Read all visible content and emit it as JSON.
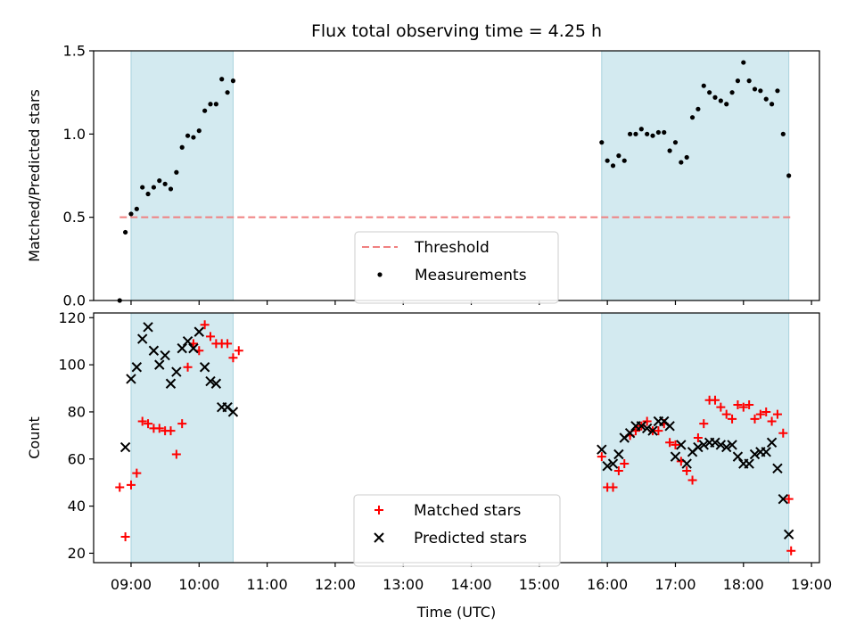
{
  "chart_data": {
    "title": "Flux total observing time = 4.25 h",
    "xlabel": "Time (UTC)",
    "xlim": [
      "08:27",
      "19:07"
    ],
    "xtick_labels": [
      "09:00",
      "10:00",
      "11:00",
      "12:00",
      "13:00",
      "14:00",
      "15:00",
      "16:00",
      "17:00",
      "18:00",
      "19:00"
    ],
    "shaded_intervals": [
      [
        "09:00",
        "10:30"
      ],
      [
        "15:55",
        "18:40"
      ]
    ],
    "shade_color": "#d3eaf0",
    "panels": [
      {
        "type": "scatter",
        "ylabel": "Matched/Predicted stars",
        "ylim": [
          0,
          1.5
        ],
        "yticks": [
          "0.0",
          "0.5",
          "1.0",
          "1.5"
        ],
        "threshold": {
          "name": "Threshold",
          "value": 0.5,
          "color": "#f08080"
        },
        "legend": {
          "position": "lower-center"
        },
        "series": [
          {
            "name": "Measurements",
            "marker": "dot",
            "color": "#000000",
            "points": [
              [
                "08:50",
                0.0
              ],
              [
                "08:55",
                0.41
              ],
              [
                "09:00",
                0.52
              ],
              [
                "09:05",
                0.55
              ],
              [
                "09:10",
                0.68
              ],
              [
                "09:15",
                0.64
              ],
              [
                "09:20",
                0.68
              ],
              [
                "09:25",
                0.72
              ],
              [
                "09:30",
                0.7
              ],
              [
                "09:35",
                0.67
              ],
              [
                "09:40",
                0.77
              ],
              [
                "09:45",
                0.92
              ],
              [
                "09:50",
                0.99
              ],
              [
                "09:55",
                0.98
              ],
              [
                "10:00",
                1.02
              ],
              [
                "10:05",
                1.14
              ],
              [
                "10:10",
                1.18
              ],
              [
                "10:15",
                1.18
              ],
              [
                "10:20",
                1.33
              ],
              [
                "10:25",
                1.25
              ],
              [
                "10:30",
                1.32
              ],
              [
                "15:55",
                0.95
              ],
              [
                "16:00",
                0.84
              ],
              [
                "16:05",
                0.81
              ],
              [
                "16:10",
                0.87
              ],
              [
                "16:15",
                0.84
              ],
              [
                "16:20",
                1.0
              ],
              [
                "16:25",
                1.0
              ],
              [
                "16:30",
                1.03
              ],
              [
                "16:35",
                1.0
              ],
              [
                "16:40",
                0.99
              ],
              [
                "16:45",
                1.01
              ],
              [
                "16:50",
                1.01
              ],
              [
                "16:55",
                0.9
              ],
              [
                "17:00",
                0.95
              ],
              [
                "17:05",
                0.83
              ],
              [
                "17:10",
                0.86
              ],
              [
                "17:15",
                1.1
              ],
              [
                "17:20",
                1.15
              ],
              [
                "17:25",
                1.29
              ],
              [
                "17:30",
                1.25
              ],
              [
                "17:35",
                1.22
              ],
              [
                "17:40",
                1.2
              ],
              [
                "17:45",
                1.18
              ],
              [
                "17:50",
                1.25
              ],
              [
                "17:55",
                1.32
              ],
              [
                "18:00",
                1.43
              ],
              [
                "18:05",
                1.32
              ],
              [
                "18:10",
                1.27
              ],
              [
                "18:15",
                1.26
              ],
              [
                "18:20",
                1.21
              ],
              [
                "18:25",
                1.18
              ],
              [
                "18:30",
                1.26
              ],
              [
                "18:35",
                1.0
              ],
              [
                "18:40",
                0.75
              ]
            ]
          }
        ]
      },
      {
        "type": "scatter",
        "ylabel": "Count",
        "ylim": [
          16,
          122
        ],
        "yticks": [
          "20",
          "40",
          "60",
          "80",
          "100",
          "120"
        ],
        "legend": {
          "position": "lower-center"
        },
        "series": [
          {
            "name": "Matched stars",
            "marker": "plus",
            "color": "#ff0000",
            "points": [
              [
                "08:50",
                48
              ],
              [
                "08:55",
                27
              ],
              [
                "09:00",
                49
              ],
              [
                "09:05",
                54
              ],
              [
                "09:10",
                76
              ],
              [
                "09:15",
                75
              ],
              [
                "09:20",
                73
              ],
              [
                "09:25",
                73
              ],
              [
                "09:30",
                72
              ],
              [
                "09:35",
                72
              ],
              [
                "09:40",
                62
              ],
              [
                "09:45",
                75
              ],
              [
                "09:50",
                99
              ],
              [
                "09:55",
                109
              ],
              [
                "10:00",
                106
              ],
              [
                "10:05",
                117
              ],
              [
                "10:10",
                112
              ],
              [
                "10:15",
                109
              ],
              [
                "10:20",
                109
              ],
              [
                "10:25",
                109
              ],
              [
                "10:30",
                103
              ],
              [
                "10:35",
                106
              ],
              [
                "15:55",
                61
              ],
              [
                "16:00",
                48
              ],
              [
                "16:05",
                48
              ],
              [
                "16:10",
                55
              ],
              [
                "16:15",
                58
              ],
              [
                "16:20",
                70
              ],
              [
                "16:25",
                72
              ],
              [
                "16:30",
                74
              ],
              [
                "16:35",
                76
              ],
              [
                "16:40",
                72
              ],
              [
                "16:45",
                72
              ],
              [
                "16:50",
                75
              ],
              [
                "16:55",
                67
              ],
              [
                "17:00",
                66
              ],
              [
                "17:05",
                59
              ],
              [
                "17:10",
                55
              ],
              [
                "17:15",
                51
              ],
              [
                "17:20",
                69
              ],
              [
                "17:25",
                75
              ],
              [
                "17:30",
                85
              ],
              [
                "17:35",
                85
              ],
              [
                "17:40",
                82
              ],
              [
                "17:45",
                79
              ],
              [
                "17:50",
                77
              ],
              [
                "17:55",
                83
              ],
              [
                "18:00",
                82
              ],
              [
                "18:05",
                83
              ],
              [
                "18:10",
                77
              ],
              [
                "18:15",
                79
              ],
              [
                "18:20",
                80
              ],
              [
                "18:25",
                76
              ],
              [
                "18:30",
                79
              ],
              [
                "18:35",
                71
              ],
              [
                "18:40",
                43
              ],
              [
                "18:42",
                21
              ]
            ]
          },
          {
            "name": "Predicted stars",
            "marker": "x",
            "color": "#000000",
            "points": [
              [
                "08:55",
                65
              ],
              [
                "09:00",
                94
              ],
              [
                "09:05",
                99
              ],
              [
                "09:10",
                111
              ],
              [
                "09:15",
                116
              ],
              [
                "09:20",
                106
              ],
              [
                "09:25",
                100
              ],
              [
                "09:30",
                104
              ],
              [
                "09:35",
                92
              ],
              [
                "09:40",
                97
              ],
              [
                "09:45",
                107
              ],
              [
                "09:50",
                110
              ],
              [
                "09:55",
                107
              ],
              [
                "10:00",
                114
              ],
              [
                "10:05",
                99
              ],
              [
                "10:10",
                93
              ],
              [
                "10:15",
                92
              ],
              [
                "10:20",
                82
              ],
              [
                "10:25",
                82
              ],
              [
                "10:30",
                80
              ],
              [
                "15:55",
                64
              ],
              [
                "16:00",
                57
              ],
              [
                "16:05",
                58
              ],
              [
                "16:10",
                62
              ],
              [
                "16:15",
                69
              ],
              [
                "16:20",
                71
              ],
              [
                "16:25",
                74
              ],
              [
                "16:30",
                74
              ],
              [
                "16:35",
                73
              ],
              [
                "16:40",
                72
              ],
              [
                "16:45",
                76
              ],
              [
                "16:50",
                76
              ],
              [
                "16:55",
                74
              ],
              [
                "17:00",
                61
              ],
              [
                "17:05",
                66
              ],
              [
                "17:10",
                58
              ],
              [
                "17:15",
                63
              ],
              [
                "17:20",
                65
              ],
              [
                "17:25",
                66
              ],
              [
                "17:30",
                67
              ],
              [
                "17:35",
                67
              ],
              [
                "17:40",
                66
              ],
              [
                "17:45",
                65
              ],
              [
                "17:50",
                66
              ],
              [
                "17:55",
                61
              ],
              [
                "18:00",
                58
              ],
              [
                "18:05",
                58
              ],
              [
                "18:10",
                62
              ],
              [
                "18:15",
                63
              ],
              [
                "18:20",
                63
              ],
              [
                "18:25",
                67
              ],
              [
                "18:30",
                56
              ],
              [
                "18:35",
                43
              ],
              [
                "18:40",
                28
              ]
            ]
          }
        ]
      }
    ]
  }
}
